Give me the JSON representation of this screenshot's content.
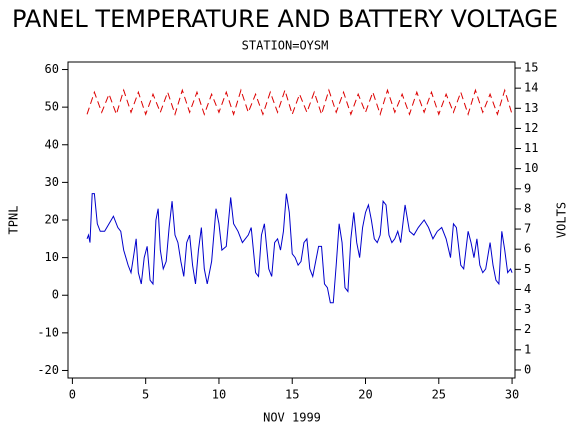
{
  "chart_data": {
    "type": "line",
    "title": "PANEL TEMPERATURE AND BATTERY VOLTAGE",
    "subtitle": "STATION=OYSM",
    "x_label": "NOV 1999",
    "y_label": "TPNL",
    "y2_label": "VOLTS",
    "xlim": [
      -0.3,
      30.2
    ],
    "xticks": [
      0,
      5,
      10,
      15,
      20,
      25,
      30
    ],
    "ylim": [
      -22,
      62
    ],
    "yticks": [
      -20,
      -10,
      0,
      10,
      20,
      30,
      40,
      50,
      60
    ],
    "y2lim": [
      -0.4,
      15.3
    ],
    "y2ticks": [
      0,
      1,
      2,
      3,
      4,
      5,
      6,
      7,
      8,
      9,
      10,
      11,
      12,
      13,
      14,
      15
    ],
    "series": [
      {
        "name": "TPNL",
        "color": "#0000cc",
        "axis": "y",
        "x": [
          1.0,
          1.1,
          1.2,
          1.35,
          1.5,
          1.7,
          1.9,
          2.2,
          2.5,
          2.8,
          3.1,
          3.3,
          3.5,
          3.8,
          4.0,
          4.2,
          4.35,
          4.5,
          4.7,
          4.9,
          5.1,
          5.3,
          5.5,
          5.7,
          5.85,
          6.0,
          6.2,
          6.4,
          6.6,
          6.8,
          7.0,
          7.2,
          7.4,
          7.6,
          7.8,
          8.0,
          8.2,
          8.4,
          8.6,
          8.8,
          9.0,
          9.2,
          9.5,
          9.8,
          10.0,
          10.2,
          10.5,
          10.8,
          11.0,
          11.3,
          11.6,
          12.0,
          12.2,
          12.5,
          12.7,
          12.9,
          13.1,
          13.4,
          13.6,
          13.8,
          14.0,
          14.2,
          14.4,
          14.6,
          14.8,
          15.0,
          15.2,
          15.4,
          15.6,
          15.8,
          16.0,
          16.2,
          16.4,
          16.6,
          16.8,
          17.0,
          17.2,
          17.4,
          17.6,
          17.8,
          18.0,
          18.2,
          18.4,
          18.6,
          18.8,
          19.0,
          19.2,
          19.4,
          19.6,
          19.8,
          20.0,
          20.2,
          20.4,
          20.6,
          20.8,
          21.0,
          21.2,
          21.4,
          21.6,
          21.8,
          22.0,
          22.2,
          22.4,
          22.7,
          23.0,
          23.3,
          23.6,
          24.0,
          24.3,
          24.6,
          24.9,
          25.2,
          25.5,
          25.8,
          26.0,
          26.2,
          26.5,
          26.7,
          27.0,
          27.2,
          27.4,
          27.6,
          27.8,
          28.0,
          28.2,
          28.5,
          28.7,
          28.9,
          29.1,
          29.3,
          29.5,
          29.7,
          29.9,
          30.0
        ],
        "values": [
          15,
          16,
          14,
          27,
          27,
          19,
          17,
          17,
          19,
          21,
          18,
          17,
          12,
          8,
          6,
          11,
          15,
          6,
          3,
          10,
          13,
          4,
          3,
          20,
          23,
          12,
          7,
          9,
          18,
          25,
          16,
          14,
          9,
          5,
          14,
          16,
          8,
          3,
          12,
          18,
          7,
          3,
          9,
          23,
          19,
          12,
          13,
          26,
          19,
          17,
          14,
          16,
          18,
          6,
          5,
          16,
          19,
          7,
          5,
          14,
          15,
          12,
          17,
          27,
          22,
          11,
          10,
          8,
          9,
          14,
          15,
          7,
          5,
          9,
          13,
          13,
          3,
          2,
          -2,
          -2,
          8,
          19,
          14,
          2,
          1,
          15,
          22,
          14,
          10,
          18,
          22,
          24,
          20,
          15,
          14,
          16,
          25,
          24,
          16,
          14,
          15,
          17,
          14,
          24,
          17,
          16,
          18,
          20,
          18,
          15,
          17,
          18,
          15,
          10,
          19,
          18,
          8,
          7,
          17,
          14,
          10,
          15,
          8,
          6,
          7,
          14,
          8,
          4,
          3,
          17,
          12,
          6,
          7,
          6
        ]
      },
      {
        "name": "VOLTS",
        "color": "#dd0000",
        "axis": "y2",
        "x": [
          1.0,
          1.5,
          2.0,
          2.5,
          3.0,
          3.5,
          4.0,
          4.5,
          5.0,
          5.5,
          6.0,
          6.5,
          7.0,
          7.5,
          8.0,
          8.5,
          9.0,
          9.5,
          10.0,
          10.5,
          11.0,
          11.5,
          12.0,
          12.5,
          13.0,
          13.5,
          14.0,
          14.5,
          15.0,
          15.5,
          16.0,
          16.5,
          17.0,
          17.5,
          18.0,
          18.5,
          19.0,
          19.5,
          20.0,
          20.5,
          21.0,
          21.5,
          22.0,
          22.5,
          23.0,
          23.5,
          24.0,
          24.5,
          25.0,
          25.5,
          26.0,
          26.5,
          27.0,
          27.5,
          28.0,
          28.5,
          29.0,
          29.5,
          30.0
        ],
        "values": [
          12.7,
          13.8,
          12.8,
          13.7,
          12.7,
          13.9,
          12.8,
          13.8,
          12.7,
          13.7,
          12.8,
          13.8,
          12.7,
          13.9,
          12.8,
          13.8,
          12.7,
          13.7,
          12.8,
          13.8,
          12.7,
          13.9,
          12.8,
          13.7,
          12.7,
          13.8,
          12.8,
          13.9,
          12.7,
          13.7,
          12.8,
          13.8,
          12.7,
          13.9,
          12.8,
          13.8,
          12.7,
          13.7,
          12.8,
          13.8,
          12.7,
          13.9,
          12.8,
          13.7,
          12.7,
          13.8,
          12.8,
          13.8,
          12.7,
          13.7,
          12.8,
          13.8,
          12.7,
          13.9,
          12.8,
          13.7,
          12.7,
          13.9,
          12.7
        ]
      }
    ]
  }
}
